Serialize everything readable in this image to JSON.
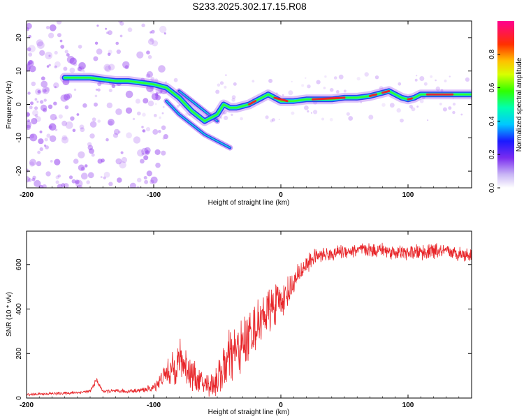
{
  "title": "S233.2025.302.17.15.R08",
  "colors": {
    "snr_line": "#e8262a",
    "scatter": "#9a4bf0",
    "ridge_edge": "#2a3cf0",
    "ridge_mid": "#16d8d8",
    "ridge_core": "#e8262a",
    "background": "#ffffff"
  },
  "chart_data": [
    {
      "type": "heatmap",
      "name": "spectrogram",
      "xlabel": "Height of straight line (km)",
      "ylabel": "Frequency (Hz)",
      "xlim": [
        -200,
        150
      ],
      "ylim": [
        -25,
        25
      ],
      "x_ticks": [
        -200,
        -100,
        0,
        100
      ],
      "x_tick_labels": [
        "-200",
        "-100",
        "0",
        "100"
      ],
      "y_ticks": [
        -20,
        -10,
        0,
        10,
        20
      ],
      "y_tick_labels": [
        "-20",
        "-10",
        "0",
        "10",
        "20"
      ],
      "ridge": {
        "x": [
          -170,
          -160,
          -150,
          -140,
          -130,
          -120,
          -110,
          -100,
          -90,
          -80,
          -70,
          -60,
          -50,
          -45,
          -40,
          -35,
          -30,
          -25,
          -20,
          -15,
          -10,
          -5,
          0,
          10,
          20,
          30,
          40,
          50,
          60,
          70,
          80,
          85,
          90,
          95,
          100,
          105,
          110,
          120,
          130,
          140,
          150
        ],
        "y": [
          8,
          8,
          8,
          7.5,
          7,
          7,
          6.5,
          6,
          5,
          2,
          -2,
          -5,
          -3,
          0,
          -1,
          -1,
          -0.5,
          0,
          1,
          2,
          3,
          2,
          1,
          1,
          1.5,
          1.5,
          1.5,
          2,
          2,
          2.5,
          3.5,
          4,
          3,
          2,
          1.5,
          2,
          3,
          3,
          3,
          3,
          3
        ]
      },
      "secondary_ridges": [
        {
          "x": [
            -90,
            -80,
            -70,
            -60,
            -50,
            -40
          ],
          "y": [
            1,
            -3,
            -6,
            -9,
            -11,
            -13
          ]
        },
        {
          "x": [
            -80,
            -70,
            -60,
            -50
          ],
          "y": [
            4,
            1,
            -2,
            -5
          ]
        }
      ],
      "colorbar": {
        "label": "Normalized spectral amplitude",
        "range": [
          0,
          1
        ],
        "ticks": [
          0.0,
          0.2,
          0.4,
          0.6,
          0.8
        ],
        "tick_labels": [
          "0.0",
          "0.2",
          "0.4",
          "0.6",
          "0.8"
        ]
      }
    },
    {
      "type": "line",
      "name": "snr",
      "xlabel": "Height of straight line (km)",
      "ylabel": "SNR (10 * v/v)",
      "xlim": [
        -200,
        150
      ],
      "ylim": [
        0,
        750
      ],
      "x_ticks": [
        -200,
        -100,
        0,
        100
      ],
      "x_tick_labels": [
        "-200",
        "-100",
        "0",
        "100"
      ],
      "y_ticks": [
        0,
        200,
        400,
        600
      ],
      "y_tick_labels": [
        "0",
        "200",
        "400",
        "600"
      ],
      "series": [
        {
          "name": "SNR",
          "x": [
            -200,
            -190,
            -180,
            -170,
            -160,
            -150,
            -145,
            -140,
            -130,
            -120,
            -110,
            -100,
            -95,
            -90,
            -85,
            -80,
            -75,
            -70,
            -65,
            -60,
            -55,
            -50,
            -45,
            -40,
            -35,
            -30,
            -25,
            -20,
            -15,
            -10,
            -5,
            0,
            5,
            10,
            15,
            20,
            25,
            30,
            40,
            50,
            60,
            70,
            80,
            90,
            100,
            110,
            120,
            130,
            140,
            150
          ],
          "y": [
            15,
            18,
            20,
            22,
            25,
            30,
            80,
            30,
            30,
            30,
            35,
            45,
            80,
            110,
            130,
            170,
            150,
            110,
            80,
            60,
            60,
            80,
            130,
            180,
            210,
            240,
            280,
            310,
            360,
            390,
            410,
            440,
            470,
            510,
            560,
            600,
            630,
            640,
            650,
            660,
            665,
            665,
            665,
            655,
            650,
            655,
            660,
            655,
            650,
            645
          ],
          "amplitude": [
            6,
            6,
            7,
            7,
            8,
            8,
            15,
            10,
            10,
            10,
            12,
            20,
            40,
            60,
            80,
            110,
            100,
            80,
            60,
            50,
            60,
            90,
            120,
            140,
            130,
            130,
            130,
            120,
            110,
            110,
            100,
            90,
            80,
            70,
            60,
            50,
            40,
            35,
            35,
            35,
            35,
            35,
            35,
            35,
            35,
            40,
            40,
            35,
            35,
            35
          ]
        }
      ]
    }
  ]
}
